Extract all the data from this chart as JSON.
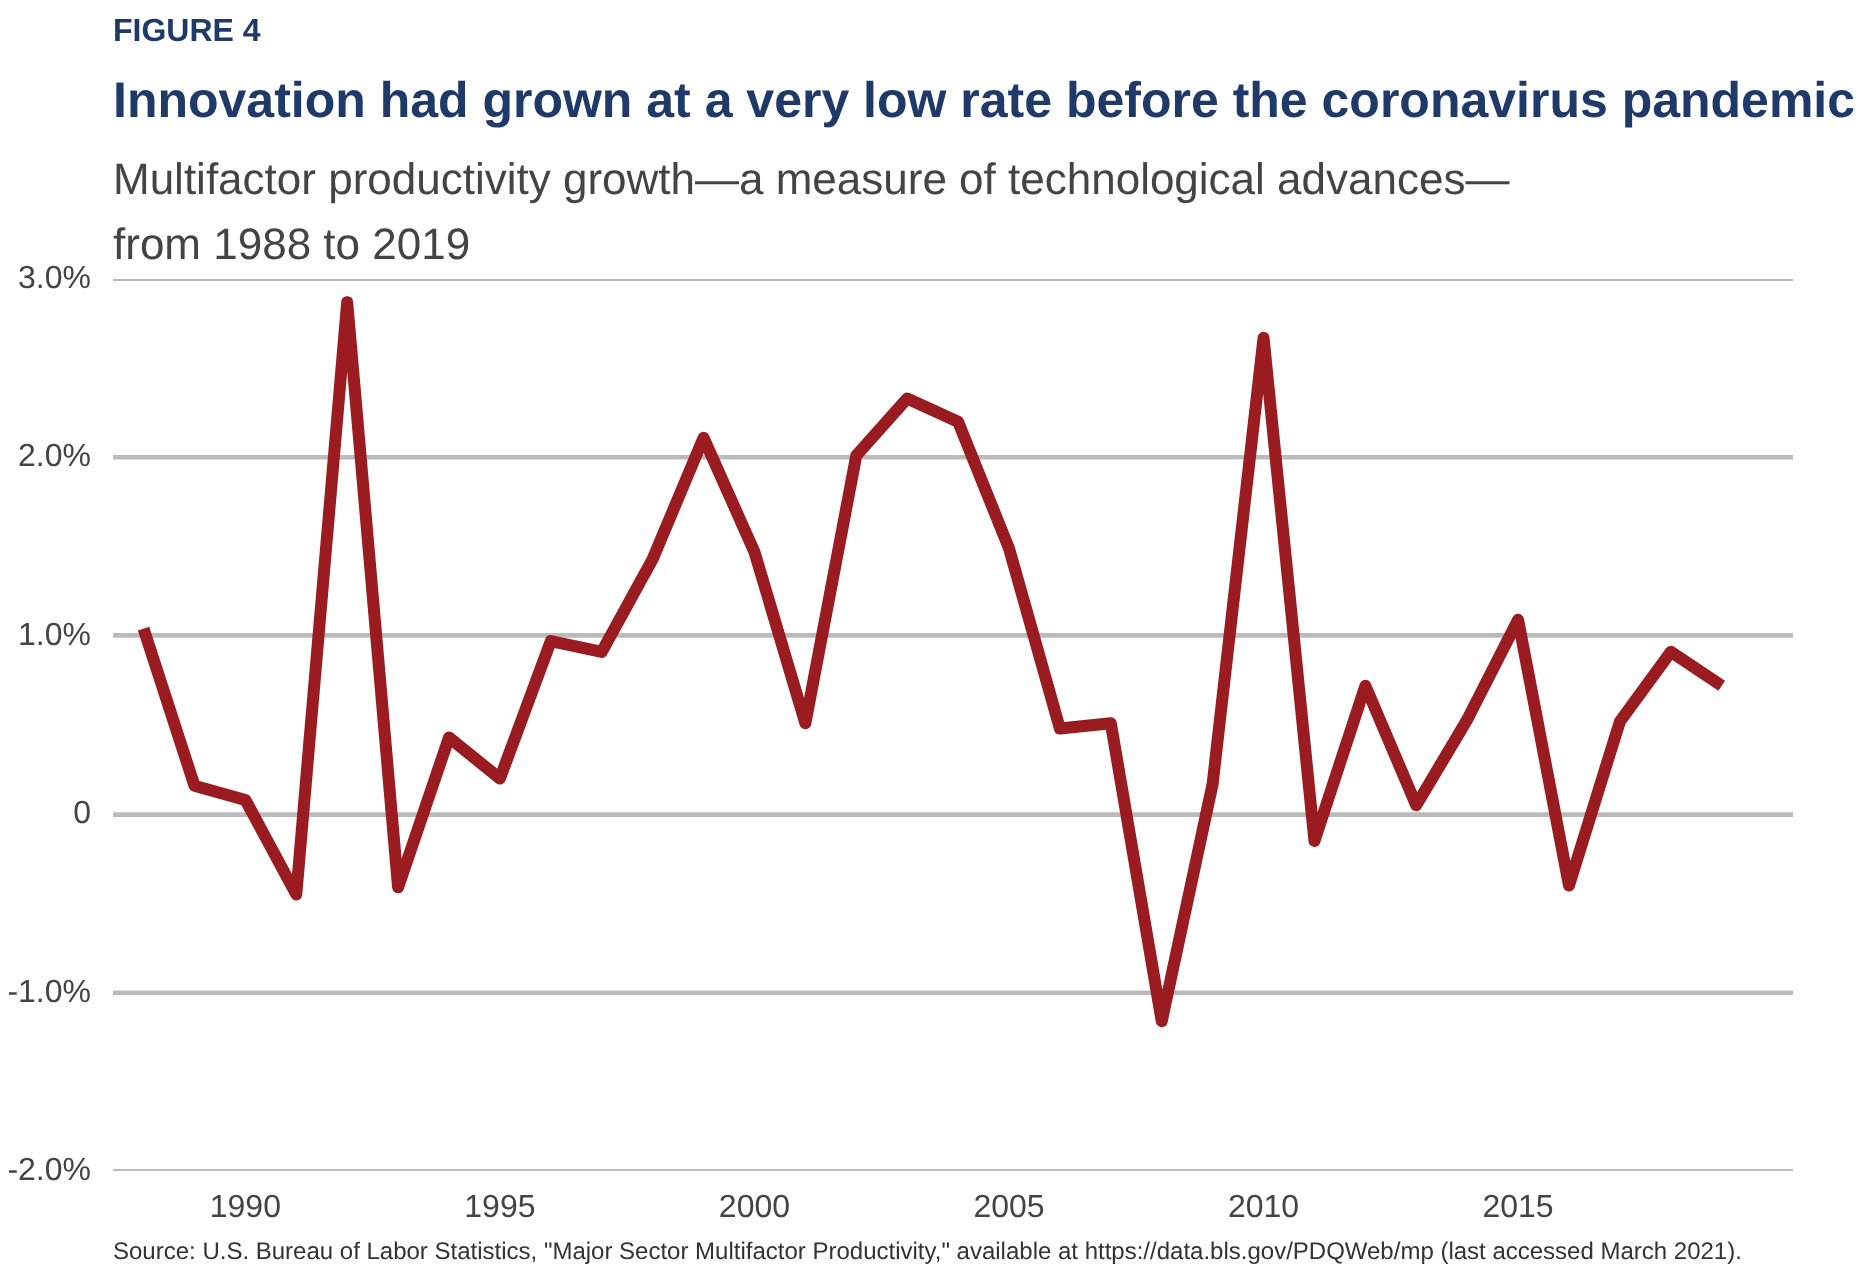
{
  "chart_data": {
    "type": "line",
    "title": "Innovation had grown at a very low rate before the coronavirus pandemic",
    "subtitle": "Multifactor productivity growth—a measure of technological advances—\nfrom 1988 to 2019",
    "x": [
      1988,
      1989,
      1990,
      1991,
      1992,
      1993,
      1994,
      1995,
      1996,
      1997,
      1998,
      1999,
      2000,
      2001,
      2002,
      2003,
      2004,
      2005,
      2006,
      2007,
      2008,
      2009,
      2010,
      2011,
      2012,
      2013,
      2014,
      2015,
      2016,
      2017,
      2018,
      2019
    ],
    "series": [
      {
        "color": "#9b1c20",
        "values": [
          1.04,
          0.16,
          0.08,
          -0.45,
          2.87,
          -0.41,
          0.43,
          0.2,
          0.97,
          0.91,
          1.43,
          2.11,
          1.47,
          0.51,
          2.01,
          2.33,
          2.2,
          1.49,
          0.48,
          0.51,
          -1.16,
          0.17,
          2.67,
          -0.15,
          0.72,
          0.05,
          0.53,
          1.09,
          -0.4,
          0.52,
          0.91,
          0.72
        ]
      }
    ],
    "xlim": [
      1987.4,
      2020.4
    ],
    "xticks": [
      1990,
      1995,
      2000,
      2005,
      2010,
      2015
    ],
    "ylim": [
      -2,
      3
    ],
    "yticks": [
      {
        "value": -2,
        "label": "-2.0%"
      },
      {
        "value": -1,
        "label": "-1.0%"
      },
      0,
      {
        "value": 1,
        "label": "1.0%"
      },
      {
        "value": 2,
        "label": "2.0%"
      },
      {
        "value": 3,
        "label": "3.0%"
      }
    ],
    "grid": "y",
    "marker": "none",
    "line_style": "solid",
    "annotations": [
      "FIGURE 4",
      "Source: U.S. Bureau of Labor Statistics, \"Major Sector Multifactor Productivity,\" available at https://data.bls.gov/PDQWeb/mp (last accessed March 2021)."
    ]
  }
}
